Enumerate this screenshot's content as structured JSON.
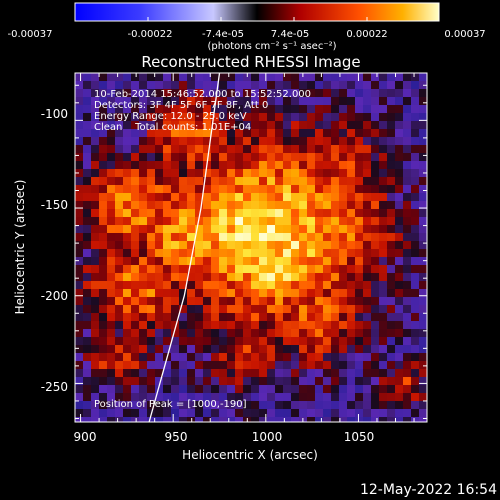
{
  "title": "Reconstructed RHESSI Image",
  "colorbar": {
    "ticks": [
      "-0.00037",
      "-0.00022",
      "-7.4e-05",
      "7.4e-05",
      "0.00022",
      "0.00037"
    ],
    "unit_label": "(photons cm⁻² s⁻¹ asec⁻²)",
    "range": [
      -0.00037,
      0.00037
    ]
  },
  "info": {
    "time": "10-Feb-2014 15:46:52.000 to 15:52:52.000",
    "detectors": "Detectors: 3F 4F 5F 6F 7F 8F, Att 0",
    "energy": "Energy Range: 12.0 - 25.0 keV",
    "clean": "Clean    Total counts: 1.01E+04"
  },
  "peak": "Position of Peak = [1000,-190]",
  "x_axis": {
    "label": "Heliocentric X (arcsec)",
    "ticks": [
      "900",
      "950",
      "1000",
      "1050"
    ],
    "values": [
      900,
      950,
      1000,
      1050
    ]
  },
  "y_axis": {
    "label": "Heliocentric Y (arcsec)",
    "ticks": [
      "-100",
      "-150",
      "-200",
      "-250"
    ],
    "values": [
      -100,
      -150,
      -200,
      -250
    ]
  },
  "plot_range": {
    "x": [
      897,
      1087
    ],
    "y": [
      -272,
      -73
    ]
  },
  "limb_curve": [
    [
      975,
      -73
    ],
    [
      965,
      -150
    ],
    [
      956,
      -200
    ],
    [
      937,
      -272
    ]
  ],
  "blobs": [
    {
      "x": 1003,
      "y": -165,
      "r": 58,
      "v": 0.97
    },
    {
      "x": 985,
      "y": -160,
      "r": 40,
      "v": 0.95
    },
    {
      "x": 1005,
      "y": -185,
      "r": 28,
      "v": 0.97
    },
    {
      "x": 960,
      "y": -165,
      "r": 38,
      "v": 0.82
    },
    {
      "x": 930,
      "y": -150,
      "r": 32,
      "v": 0.74
    },
    {
      "x": 930,
      "y": -195,
      "r": 30,
      "v": 0.7
    },
    {
      "x": 1045,
      "y": -160,
      "r": 30,
      "v": 0.68
    },
    {
      "x": 1025,
      "y": -210,
      "r": 32,
      "v": 0.62
    },
    {
      "x": 960,
      "y": -110,
      "r": 26,
      "v": 0.65
    },
    {
      "x": 1040,
      "y": -125,
      "r": 26,
      "v": 0.55
    },
    {
      "x": 990,
      "y": -230,
      "r": 24,
      "v": 0.52
    },
    {
      "x": 920,
      "y": -235,
      "r": 20,
      "v": 0.5
    },
    {
      "x": 1075,
      "y": -250,
      "r": 14,
      "v": 0.5
    }
  ],
  "colors": {
    "background": "#000000",
    "text": "#ffffff",
    "low": "#2a1a90"
  },
  "footer_date": "12-May-2022 16:54"
}
